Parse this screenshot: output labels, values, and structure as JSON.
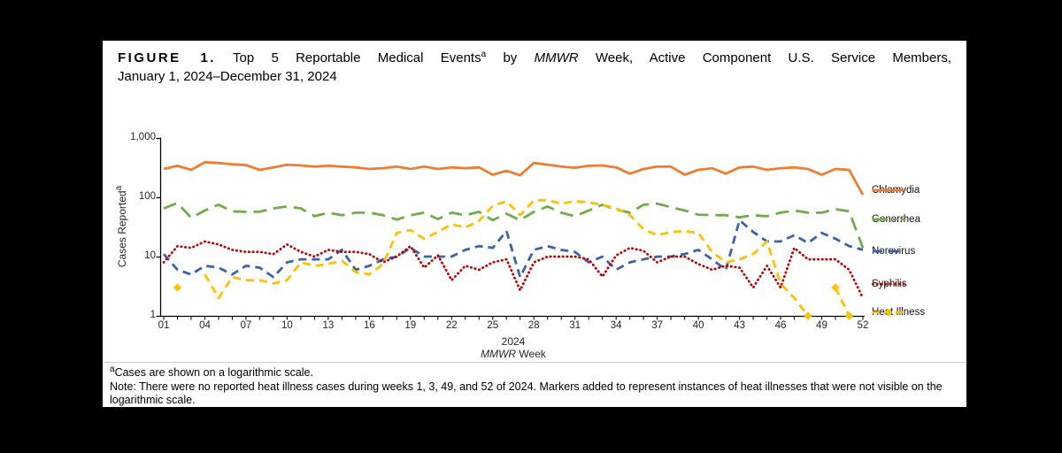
{
  "title": {
    "label": "FIGURE 1.",
    "line1_a": "Top 5 Reportable Medical Events",
    "line1_sup": "a",
    "line1_b": "by",
    "line1_italic": "MMWR",
    "line1_c": "Week, Active Component U.S. Service Members,",
    "line2": "January 1, 2024–December 31, 2024"
  },
  "axis": {
    "y_label_text": "Cases Reported",
    "y_label_sup": "a",
    "y_ticks_top_to_bottom": [
      "1,000",
      "100",
      "10",
      "1"
    ],
    "x_tick_labels": [
      "01",
      "04",
      "07",
      "10",
      "13",
      "16",
      "19",
      "22",
      "25",
      "28",
      "31",
      "34",
      "37",
      "40",
      "43",
      "46",
      "49",
      "52"
    ],
    "x_label_year": "2024",
    "x_label_italic": "MMWR",
    "x_label_rest": "Week"
  },
  "footnotes": {
    "sup": "a",
    "line1": "Cases are shown on a logarithmic scale.",
    "note": "Note: There were no reported heat illness cases during weeks 1, 3, 49, and 52 of 2024. Markers added to represent instances of heat illnesses that were not visible on the logarithmic scale."
  },
  "chart_data": {
    "type": "line",
    "title": "FIGURE 1. Top 5 Reportable Medical Events by MMWR Week, Active Component U.S. Service Members, January 1, 2024–December 31, 2024",
    "xlabel": "2024 MMWR Week",
    "ylabel": "Cases Reported",
    "log_y": true,
    "ylim": [
      1,
      1000
    ],
    "x_range_weeks": [
      1,
      52
    ],
    "grid": false,
    "legend_position": "right",
    "categories_note": "x = MMWR week number 1..52; null = no reported cases (gap on log scale)",
    "series": [
      {
        "name": "Chlamydia",
        "color": "#ED7D31",
        "dash": null,
        "legend_dash": null,
        "width": 2.8,
        "values": [
          300,
          340,
          290,
          390,
          380,
          360,
          350,
          290,
          320,
          355,
          345,
          330,
          340,
          330,
          320,
          300,
          310,
          330,
          300,
          330,
          300,
          320,
          310,
          320,
          240,
          280,
          235,
          380,
          355,
          330,
          315,
          340,
          345,
          320,
          250,
          300,
          330,
          330,
          240,
          290,
          310,
          250,
          320,
          330,
          290,
          310,
          320,
          300,
          240,
          300,
          290,
          110
        ]
      },
      {
        "name": "Gonorrhea",
        "color": "#70AD47",
        "dash": "15 8",
        "legend_dash": "17 6 3 6",
        "width": 2.8,
        "values": [
          65,
          80,
          45,
          60,
          75,
          58,
          57,
          57,
          65,
          70,
          65,
          48,
          55,
          50,
          55,
          55,
          50,
          42,
          50,
          55,
          43,
          55,
          50,
          57,
          41,
          53,
          41,
          57,
          70,
          55,
          48,
          60,
          75,
          62,
          55,
          75,
          78,
          68,
          60,
          51,
          50,
          50,
          46,
          50,
          48,
          55,
          60,
          55,
          55,
          63,
          58,
          14
        ]
      },
      {
        "name": "Norovirus",
        "color": "#3A62AD",
        "dash": "9 6",
        "legend_dash": "11 8",
        "width": 2.8,
        "values": [
          11,
          6,
          5,
          7,
          6.5,
          5,
          7,
          6.5,
          4.5,
          8,
          9,
          9,
          9,
          13,
          6,
          7,
          9,
          10,
          14,
          10,
          10,
          10,
          13,
          15,
          14,
          27,
          4.5,
          13,
          15,
          13,
          12,
          8,
          10,
          6,
          8,
          9,
          10,
          10,
          11,
          13,
          9,
          6,
          41,
          26,
          18,
          18,
          23,
          17,
          25,
          20,
          15,
          13
        ]
      },
      {
        "name": "Syphilis",
        "color": "#C00000",
        "dash": "0.5 4.2",
        "legend_dash": "0.5 4.5",
        "round": true,
        "width": 2.7,
        "values": [
          8,
          15,
          14,
          18,
          16,
          13,
          12,
          12,
          11,
          16,
          12,
          10,
          13,
          12,
          12,
          11,
          8,
          10,
          15,
          6.5,
          10.5,
          4,
          7,
          6,
          8,
          9,
          2.7,
          8,
          10,
          10,
          10,
          9,
          4.6,
          10.5,
          14,
          12.5,
          8,
          10,
          10,
          7.5,
          6,
          7,
          6.5,
          3,
          7,
          3,
          14,
          9,
          9,
          9,
          6,
          2
        ]
      },
      {
        "name": "Heat Illness",
        "color": "#FFC000",
        "dash": "9 6",
        "legend_dash": "8 5",
        "width": 2.8,
        "marker_weeks": [
          2,
          48,
          50,
          51
        ],
        "values": [
          null,
          3,
          null,
          5,
          2,
          4.5,
          4,
          4,
          3.5,
          4,
          8,
          7,
          7.5,
          8.5,
          5.5,
          5,
          7.5,
          25,
          28,
          20,
          26,
          35,
          31,
          40,
          72,
          86,
          50,
          88,
          90,
          78,
          86,
          82,
          75,
          65,
          50,
          29,
          23,
          26,
          27,
          25,
          12,
          8,
          9,
          11,
          18,
          3.5,
          2,
          1,
          null,
          3,
          1,
          null
        ]
      }
    ]
  },
  "legend": {
    "items": [
      "Chlamydia",
      "Gonorrhea",
      "Norovirus",
      "Syphilis",
      "Heat Illness"
    ]
  }
}
